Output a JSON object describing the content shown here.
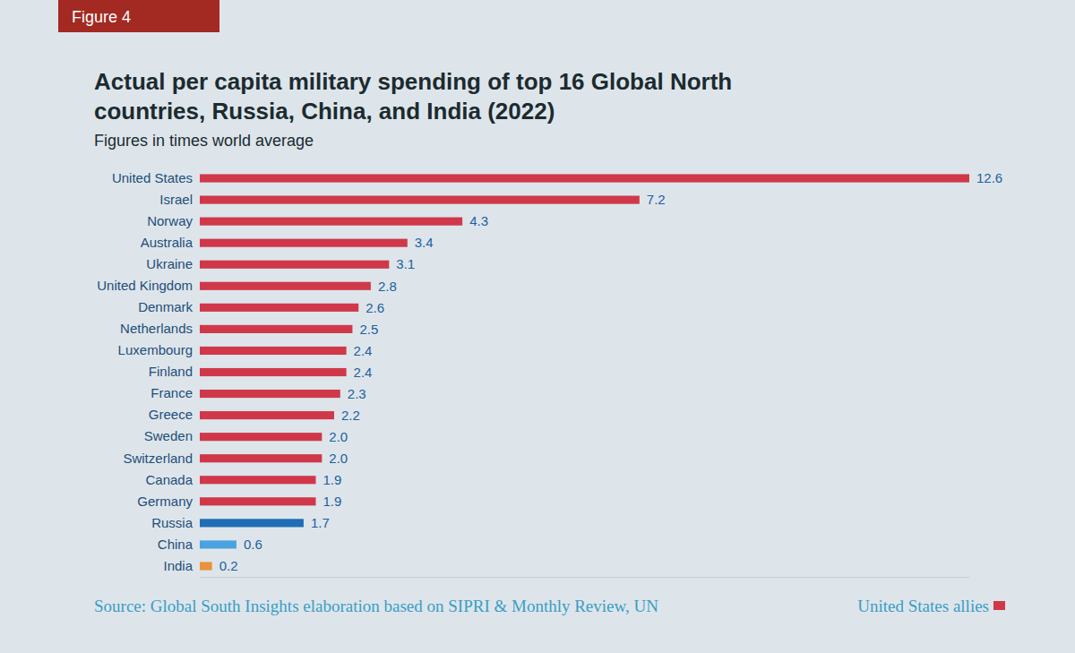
{
  "chart_data": {
    "type": "bar",
    "orientation": "horizontal",
    "title": "Actual per capita military spending of top 16 Global North countries, Russia, China, and India (2022)",
    "subtitle": "Figures in times world average",
    "annotations": [
      "Figure 4",
      "Source: Global South Insights elaboration based on SIPRI & Monthly Review, UN"
    ],
    "categories": [
      "United States",
      "Israel",
      "Norway",
      "Australia",
      "Ukraine",
      "United Kingdom",
      "Denmark",
      "Netherlands",
      "Luxembourg",
      "Finland",
      "France",
      "Greece",
      "Sweden",
      "Switzerland",
      "Canada",
      "Germany",
      "Russia",
      "China",
      "India"
    ],
    "series": [
      {
        "name": "United States allies",
        "color": "#d0384a",
        "values": [
          12.6,
          7.2,
          4.3,
          3.4,
          3.1,
          2.8,
          2.6,
          2.5,
          2.4,
          2.4,
          2.3,
          2.2,
          2.0,
          2.0,
          1.9,
          1.9,
          null,
          null,
          null
        ],
        "value_labels": [
          "12.6",
          "7.2",
          "4.3",
          "3.4",
          "3.1",
          "2.8",
          "2.6",
          "2.5",
          "2.4",
          "2.4",
          "2.3",
          "2.2",
          "2.0",
          "2.0",
          "1.9",
          "1.9",
          null,
          null,
          null
        ]
      },
      {
        "colors": [
          null,
          null,
          null,
          null,
          null,
          null,
          null,
          null,
          null,
          null,
          null,
          null,
          null,
          null,
          null,
          null,
          "#1f6eb5",
          "#4aa3df",
          "#e8923a"
        ],
        "values": [
          null,
          null,
          null,
          null,
          null,
          null,
          null,
          null,
          null,
          null,
          null,
          null,
          null,
          null,
          null,
          null,
          1.7,
          0.6,
          0.2
        ],
        "value_labels": [
          null,
          null,
          null,
          null,
          null,
          null,
          null,
          null,
          null,
          null,
          null,
          null,
          null,
          null,
          null,
          null,
          "1.7",
          "0.6",
          "0.2"
        ]
      }
    ],
    "xlim": [
      0,
      12.6
    ],
    "tick_labels": "y",
    "data_labels": true,
    "grid": false,
    "legend": "bottom-right",
    "stacked": false
  }
}
